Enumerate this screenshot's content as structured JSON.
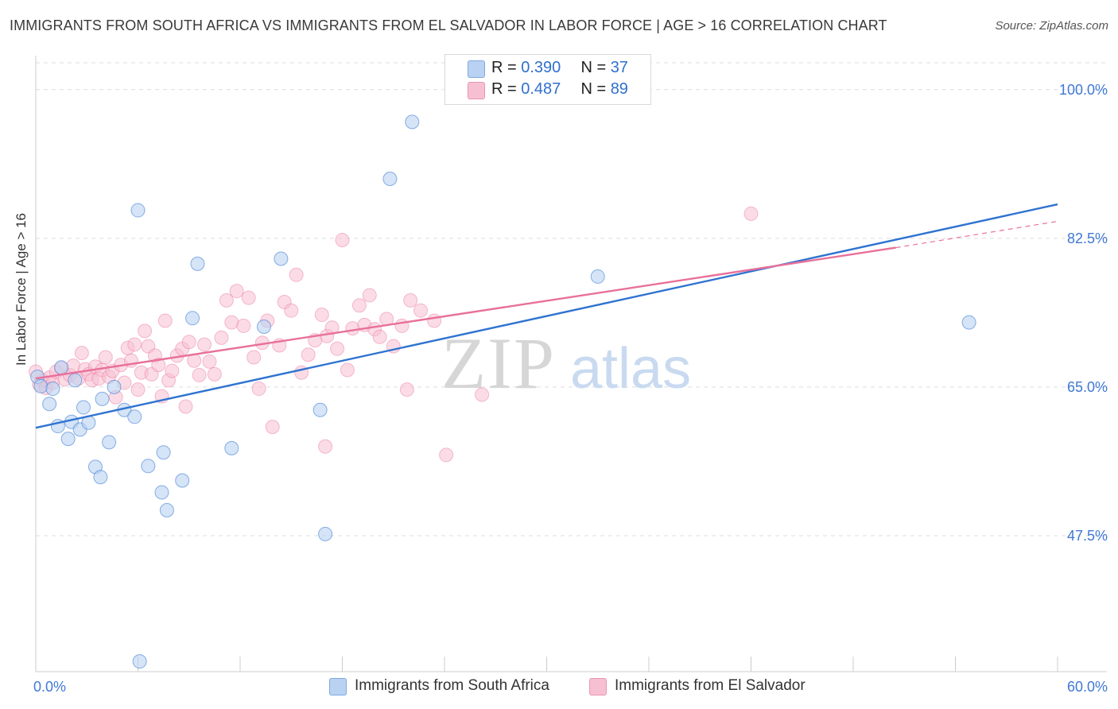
{
  "title": "IMMIGRANTS FROM SOUTH AFRICA VS IMMIGRANTS FROM EL SALVADOR IN LABOR FORCE | AGE > 16 CORRELATION CHART",
  "source": "Source: ZipAtlas.com",
  "colors": {
    "blue": "#2f73d0",
    "blue_fill": "#b9d2f2",
    "pink": "#e8709a",
    "pink_fill": "#f7c0d2",
    "grid": "#dddddd",
    "tick_label": "#3f78d6"
  },
  "legend": {
    "r_label": "R =",
    "n_label": "N =",
    "blue": {
      "r": "0.390",
      "n": "37"
    },
    "pink": {
      "r": "0.487",
      "n": "89"
    }
  },
  "watermark": {
    "zip": "ZIP",
    "atlas": "atlas"
  },
  "chart_data": {
    "type": "scatter",
    "xlabel": "",
    "ylabel": "In Labor Force | Age > 16",
    "xlim": [
      0,
      60
    ],
    "ylim": [
      31.5,
      104
    ],
    "x_tick_labels": [
      "0.0%",
      "60.0%"
    ],
    "y_ticks": [
      47.5,
      65.0,
      82.5,
      100.0
    ],
    "y_tick_labels": [
      "47.5%",
      "65.0%",
      "82.5%",
      "100.0%"
    ],
    "series": [
      {
        "name": "Immigrants from South Africa",
        "color": "blue",
        "points": [
          [
            0.1,
            66.2
          ],
          [
            0.3,
            65.1
          ],
          [
            0.8,
            63.0
          ],
          [
            1.0,
            64.8
          ],
          [
            1.3,
            60.4
          ],
          [
            1.5,
            67.3
          ],
          [
            1.9,
            58.9
          ],
          [
            2.1,
            60.9
          ],
          [
            2.3,
            65.8
          ],
          [
            2.6,
            60.0
          ],
          [
            2.8,
            62.6
          ],
          [
            3.1,
            60.8
          ],
          [
            3.5,
            55.6
          ],
          [
            3.8,
            54.4
          ],
          [
            3.9,
            63.6
          ],
          [
            4.3,
            58.5
          ],
          [
            4.6,
            65.0
          ],
          [
            5.2,
            62.3
          ],
          [
            5.8,
            61.5
          ],
          [
            6.0,
            85.8
          ],
          [
            6.1,
            32.7
          ],
          [
            6.6,
            55.7
          ],
          [
            7.4,
            52.6
          ],
          [
            7.5,
            57.3
          ],
          [
            7.7,
            50.5
          ],
          [
            8.6,
            54.0
          ],
          [
            9.2,
            73.1
          ],
          [
            9.5,
            79.5
          ],
          [
            11.5,
            57.8
          ],
          [
            13.4,
            72.1
          ],
          [
            14.4,
            80.1
          ],
          [
            16.7,
            62.3
          ],
          [
            17.0,
            47.7
          ],
          [
            20.8,
            89.5
          ],
          [
            22.1,
            96.2
          ],
          [
            33.0,
            78.0
          ],
          [
            54.8,
            72.6
          ]
        ]
      },
      {
        "name": "Immigrants from El Salvador",
        "color": "pink",
        "points": [
          [
            0.2,
            65.3
          ],
          [
            0.4,
            65.8
          ],
          [
            0.6,
            64.9
          ],
          [
            0.8,
            66.1
          ],
          [
            1.0,
            65.5
          ],
          [
            1.2,
            66.8
          ],
          [
            1.5,
            67.2
          ],
          [
            1.7,
            65.9
          ],
          [
            2.0,
            66.4
          ],
          [
            2.2,
            67.5
          ],
          [
            2.5,
            66.0
          ],
          [
            2.7,
            69.0
          ],
          [
            2.9,
            67.1
          ],
          [
            3.1,
            66.5
          ],
          [
            3.3,
            65.8
          ],
          [
            3.5,
            67.4
          ],
          [
            3.7,
            66.0
          ],
          [
            3.9,
            67.0
          ],
          [
            4.1,
            68.5
          ],
          [
            4.3,
            66.2
          ],
          [
            4.5,
            66.9
          ],
          [
            4.7,
            63.8
          ],
          [
            5.0,
            67.6
          ],
          [
            5.2,
            65.5
          ],
          [
            5.4,
            69.6
          ],
          [
            5.6,
            68.1
          ],
          [
            5.8,
            70.0
          ],
          [
            6.0,
            64.7
          ],
          [
            6.2,
            66.7
          ],
          [
            6.4,
            71.6
          ],
          [
            6.6,
            69.8
          ],
          [
            6.8,
            66.5
          ],
          [
            7.0,
            68.7
          ],
          [
            7.2,
            67.6
          ],
          [
            7.4,
            63.9
          ],
          [
            7.6,
            72.8
          ],
          [
            7.8,
            65.8
          ],
          [
            8.0,
            66.9
          ],
          [
            8.3,
            68.7
          ],
          [
            8.6,
            69.5
          ],
          [
            8.8,
            62.7
          ],
          [
            9.0,
            70.3
          ],
          [
            9.3,
            68.1
          ],
          [
            9.6,
            66.4
          ],
          [
            9.9,
            70.0
          ],
          [
            10.2,
            68.0
          ],
          [
            10.5,
            66.5
          ],
          [
            10.9,
            70.8
          ],
          [
            11.2,
            75.2
          ],
          [
            11.5,
            72.6
          ],
          [
            11.8,
            76.3
          ],
          [
            12.2,
            72.2
          ],
          [
            12.5,
            75.5
          ],
          [
            12.8,
            68.5
          ],
          [
            13.1,
            64.8
          ],
          [
            13.3,
            70.2
          ],
          [
            13.6,
            72.8
          ],
          [
            13.9,
            60.3
          ],
          [
            14.3,
            69.9
          ],
          [
            14.6,
            75.0
          ],
          [
            15.0,
            74.0
          ],
          [
            15.3,
            78.2
          ],
          [
            15.6,
            66.7
          ],
          [
            16.0,
            68.8
          ],
          [
            16.4,
            70.5
          ],
          [
            16.8,
            73.5
          ],
          [
            17.1,
            71.0
          ],
          [
            17.4,
            72.0
          ],
          [
            17.7,
            69.5
          ],
          [
            18.0,
            82.3
          ],
          [
            18.3,
            67.0
          ],
          [
            18.6,
            71.9
          ],
          [
            19.0,
            74.6
          ],
          [
            19.3,
            72.3
          ],
          [
            19.6,
            75.8
          ],
          [
            19.9,
            71.8
          ],
          [
            20.2,
            70.9
          ],
          [
            20.6,
            73.0
          ],
          [
            21.0,
            69.8
          ],
          [
            21.5,
            72.2
          ],
          [
            22.0,
            75.2
          ],
          [
            22.6,
            74.0
          ],
          [
            23.4,
            72.8
          ],
          [
            24.1,
            57.0
          ],
          [
            26.2,
            64.1
          ],
          [
            17.0,
            58.0
          ],
          [
            21.8,
            64.7
          ],
          [
            42.0,
            85.4
          ],
          [
            0.0,
            66.8
          ]
        ]
      }
    ],
    "trendlines": [
      {
        "series": "Immigrants from South Africa",
        "from": [
          0,
          60.2
        ],
        "to": [
          60,
          86.5
        ],
        "style": "solid"
      },
      {
        "series": "Immigrants from El Salvador",
        "from": [
          0,
          66.0
        ],
        "to": [
          50.5,
          81.4
        ],
        "style": "solid"
      },
      {
        "series": "Immigrants from El Salvador",
        "from": [
          50.5,
          81.4
        ],
        "to": [
          60,
          84.5
        ],
        "style": "dashed"
      }
    ]
  }
}
